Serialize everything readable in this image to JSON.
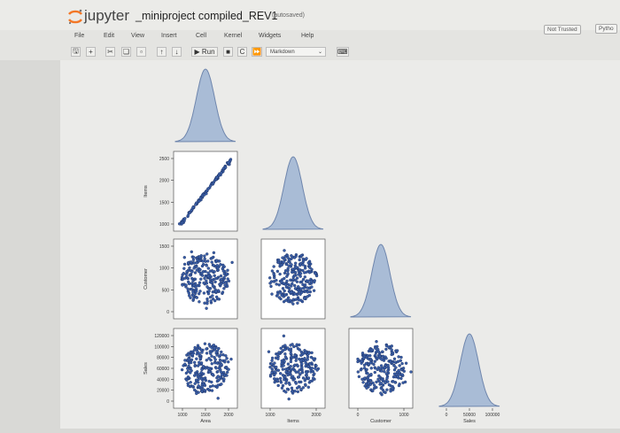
{
  "header": {
    "logo_text": "jupyter",
    "notebook_name": "_miniproject compiled_REV1",
    "save_status": "(autosaved)",
    "not_trusted": "Not Trusted",
    "kernel_name": "Pytho"
  },
  "menu": [
    "File",
    "Edit",
    "View",
    "Insert",
    "Cell",
    "Kernel",
    "Widgets",
    "Help"
  ],
  "toolbar": {
    "run_label": "Run",
    "cell_type": "Markdown",
    "icons": [
      "save-icon",
      "plus-icon",
      "cut-icon",
      "copy-icon",
      "paste-icon",
      "move-up-icon",
      "move-down-icon",
      "run-icon",
      "stop-icon",
      "restart-icon",
      "fast-forward-icon",
      "cell-type-dropdown",
      "keyboard-icon"
    ]
  },
  "chart_data": {
    "type": "scatter",
    "kind": "pairplot",
    "variables": [
      "Area",
      "Items",
      "Customer",
      "Sales"
    ],
    "axis_labels": [
      "Area",
      "Items",
      "Customer",
      "Sales"
    ],
    "diag_kind": "kde",
    "colors": {
      "point": "#3a5fa8",
      "point_edge": "#1c2f5e",
      "kde_fill": "#a9bcd6",
      "kde_line": "#6f86ad"
    },
    "ticks": {
      "Items_y": [
        "1000",
        "1500",
        "2000",
        "2500"
      ],
      "Customer_y": [
        "0",
        "500",
        "1000",
        "1500"
      ],
      "Sales_y": [
        "0",
        "20000",
        "40000",
        "60000",
        "80000",
        "100000",
        "120000"
      ],
      "Area_x": [
        "1000",
        "1500",
        "2000"
      ],
      "Items_x": [
        "1000",
        "2000"
      ],
      "Customer_x": [
        "0",
        "1000"
      ],
      "Sales_x": [
        "0",
        "50000",
        "100000"
      ]
    },
    "ranges": {
      "Area": [
        800,
        2500
      ],
      "Items": [
        800,
        2600
      ],
      "Customer": [
        0,
        1700
      ],
      "Sales": [
        0,
        120000
      ]
    },
    "centers": {
      "Area": 1600,
      "Items": 1700,
      "Customer": 800,
      "Sales": 60000
    },
    "relationships": {
      "Area_vs_Items": "strong positive linear",
      "others": "no correlation, circular cloud"
    }
  }
}
